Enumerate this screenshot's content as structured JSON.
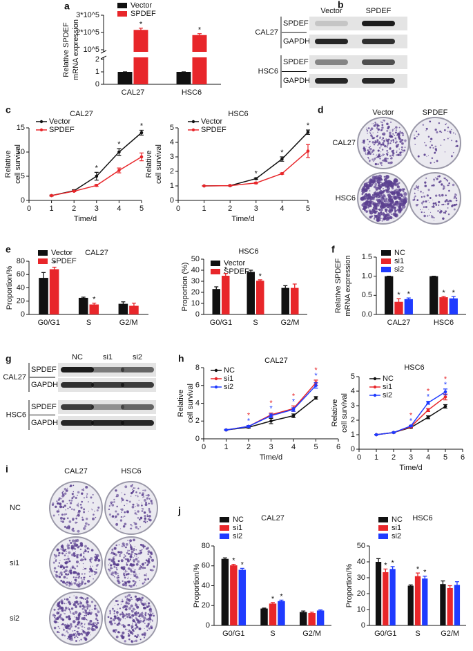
{
  "panel_labels": [
    "a",
    "b",
    "c",
    "d",
    "e",
    "f",
    "g",
    "h",
    "i",
    "j"
  ],
  "chart_data": [
    {
      "type": "bar",
      "categories": [
        "CAL27",
        "HSC6"
      ],
      "ylabel": [
        "Relative SPDEF",
        "mRNA expression"
      ],
      "ylim": [
        0,
        300000
      ],
      "axis_break": [
        2,
        100000
      ],
      "yticks": [
        0,
        1,
        2,
        {
          "value": 100000,
          "label": "10^5"
        },
        {
          "value": 200000,
          "label": "2*10^5"
        },
        {
          "value": 300000,
          "label": "3*10^5"
        }
      ],
      "series": [
        {
          "name": "Vector",
          "color": "#111111",
          "values": [
            1,
            1
          ],
          "errors": [
            0,
            0
          ],
          "stars": [
            null,
            null
          ]
        },
        {
          "name": "SPDEF",
          "color": "#e8262a",
          "values": [
            215000,
            185000
          ],
          "errors": [
            10000,
            8000
          ],
          "stars": [
            "*",
            "*"
          ]
        }
      ]
    },
    {
      "type": "line",
      "title": "CAL27",
      "xlabel": "Time/d",
      "ylabel": [
        "Relative",
        "cell survival"
      ],
      "x": [
        1,
        2,
        3,
        4,
        5
      ],
      "xlim": [
        0,
        5
      ],
      "xticks": [
        0,
        1,
        2,
        3,
        4,
        5
      ],
      "ylim": [
        0,
        15
      ],
      "yticks": [
        0,
        5,
        10,
        15
      ],
      "series": [
        {
          "name": "Vector",
          "color": "#111111",
          "values": [
            1,
            2,
            5,
            10,
            14
          ],
          "errors": [
            0.1,
            0.2,
            0.8,
            0.7,
            0.5
          ],
          "stars": [
            null,
            null,
            "*",
            "*",
            "*"
          ]
        },
        {
          "name": "SPDEF",
          "color": "#e8262a",
          "values": [
            1,
            1.9,
            3.1,
            6.2,
            9
          ],
          "errors": [
            0.1,
            0.1,
            0.2,
            0.5,
            0.8
          ],
          "stars": [
            null,
            null,
            null,
            null,
            null
          ]
        }
      ]
    },
    {
      "type": "line",
      "title": "HSC6",
      "xlabel": "Time/d",
      "ylabel": [
        "Relative",
        "cell survival"
      ],
      "x": [
        1,
        2,
        3,
        4,
        5
      ],
      "xlim": [
        0,
        5
      ],
      "xticks": [
        0,
        1,
        2,
        3,
        4,
        5
      ],
      "ylim": [
        0,
        5
      ],
      "yticks": [
        0,
        1,
        2,
        3,
        4,
        5
      ],
      "series": [
        {
          "name": "Vector",
          "color": "#111111",
          "values": [
            1,
            1.02,
            1.5,
            2.85,
            4.7
          ],
          "errors": [
            0.02,
            0.03,
            0.05,
            0.15,
            0.15
          ],
          "stars": [
            null,
            null,
            "*",
            "*",
            "*"
          ]
        },
        {
          "name": "SPDEF",
          "color": "#e8262a",
          "values": [
            1,
            1.02,
            1.2,
            1.85,
            3.4
          ],
          "errors": [
            0.02,
            0.03,
            0.05,
            0.05,
            0.45
          ],
          "stars": [
            null,
            null,
            null,
            null,
            null
          ]
        }
      ]
    },
    {
      "type": "bar",
      "title": "CAL27",
      "categories": [
        "G0/G1",
        "S",
        "G2/M"
      ],
      "ylabel": [
        "Proportion/%"
      ],
      "ylim": [
        0,
        80
      ],
      "yticks": [
        0,
        20,
        40,
        60,
        80
      ],
      "series": [
        {
          "name": "Vector",
          "color": "#111111",
          "values": [
            55,
            25,
            16
          ],
          "errors": [
            8,
            1,
            3
          ],
          "stars": [
            null,
            null,
            null
          ]
        },
        {
          "name": "SPDEF",
          "color": "#e8262a",
          "values": [
            68,
            15,
            13
          ],
          "errors": [
            3,
            2,
            4
          ],
          "stars": [
            "*",
            "*",
            null
          ]
        }
      ]
    },
    {
      "type": "bar",
      "title": "HSC6",
      "categories": [
        "G0/G1",
        "S",
        "G2/M"
      ],
      "ylabel": [
        "Proportion (%)"
      ],
      "ylim": [
        0,
        50
      ],
      "yticks": [
        0,
        10,
        20,
        30,
        40,
        50
      ],
      "series": [
        {
          "name": "Vector",
          "color": "#111111",
          "values": [
            23,
            38.5,
            24
          ],
          "errors": [
            2,
            1.5,
            2
          ],
          "stars": [
            null,
            null,
            null
          ]
        },
        {
          "name": "SPDEF",
          "color": "#e8262a",
          "values": [
            35,
            30.5,
            24
          ],
          "errors": [
            2,
            0.8,
            3.5
          ],
          "stars": [
            "*",
            "*",
            null
          ]
        }
      ]
    },
    {
      "type": "bar",
      "categories": [
        "CAL27",
        "HSC6"
      ],
      "ylabel": [
        "Relative SPDEF",
        "mRNA expression"
      ],
      "ylim": [
        0,
        1.5
      ],
      "yticks": [
        {
          "value": 0,
          "label": "0.0"
        },
        0.5,
        {
          "value": 1,
          "label": "1.0"
        },
        1.5
      ],
      "series": [
        {
          "name": "NC",
          "color": "#111111",
          "values": [
            1,
            1
          ],
          "errors": [
            0,
            0
          ],
          "stars": [
            null,
            null
          ]
        },
        {
          "name": "si1",
          "color": "#e8262a",
          "values": [
            0.33,
            0.45
          ],
          "errors": [
            0.08,
            0.02
          ],
          "stars": [
            "*",
            "*"
          ]
        },
        {
          "name": "si2",
          "color": "#1f3bff",
          "values": [
            0.4,
            0.42
          ],
          "errors": [
            0.03,
            0.05
          ],
          "stars": [
            "*",
            "*"
          ]
        }
      ]
    },
    {
      "type": "line",
      "title": "CAL27",
      "xlabel": "Time/d",
      "ylabel": [
        "Relative",
        "cell survival"
      ],
      "x": [
        1,
        2,
        3,
        4,
        5
      ],
      "xlim": [
        0,
        6
      ],
      "xticks": [
        0,
        1,
        2,
        3,
        4,
        5,
        6
      ],
      "ylim": [
        0,
        8
      ],
      "yticks": [
        0,
        2,
        4,
        6,
        8
      ],
      "series": [
        {
          "name": "NC",
          "color": "#111111",
          "values": [
            1,
            1.3,
            2,
            2.6,
            4.6
          ],
          "errors": [
            0.05,
            0.1,
            0.3,
            0.2,
            0.15
          ],
          "stars": [
            null,
            null,
            null,
            null,
            null
          ]
        },
        {
          "name": "si1",
          "color": "#e8262a",
          "values": [
            1,
            1.4,
            2.7,
            3.4,
            6.3
          ],
          "errors": [
            0.05,
            0.1,
            0.2,
            0.3,
            0.3
          ],
          "stars": [
            null,
            "*",
            "*",
            "*",
            "*"
          ]
        },
        {
          "name": "si2",
          "color": "#1f3bff",
          "values": [
            1,
            1.4,
            2.6,
            3.3,
            6
          ],
          "errors": [
            0.05,
            0.1,
            0.2,
            0.2,
            0.3
          ],
          "stars": [
            null,
            "*",
            "*",
            "*",
            "*"
          ]
        }
      ]
    },
    {
      "type": "line",
      "title": "HSC6",
      "xlabel": "Time/d",
      "ylabel": [
        "Relative",
        "cell survival"
      ],
      "x": [
        1,
        2,
        3,
        4,
        5
      ],
      "xlim": [
        0,
        6
      ],
      "xticks": [
        0,
        1,
        2,
        3,
        4,
        5,
        6
      ],
      "ylim": [
        0,
        5
      ],
      "yticks": [
        0,
        1,
        2,
        3,
        4,
        5
      ],
      "series": [
        {
          "name": "NC",
          "color": "#111111",
          "values": [
            1,
            1.15,
            1.5,
            2.2,
            2.95
          ],
          "errors": [
            0.02,
            0.03,
            0.05,
            0.1,
            0.12
          ],
          "stars": [
            null,
            null,
            null,
            null,
            null
          ]
        },
        {
          "name": "si1",
          "color": "#e8262a",
          "values": [
            1,
            1.15,
            1.55,
            2.7,
            3.6
          ],
          "errors": [
            0.02,
            0.03,
            0.05,
            0.1,
            0.2
          ],
          "stars": [
            null,
            null,
            "*",
            "*",
            "*"
          ]
        },
        {
          "name": "si2",
          "color": "#1f3bff",
          "values": [
            1,
            1.15,
            1.6,
            3.2,
            3.95
          ],
          "errors": [
            0.02,
            0.03,
            0.05,
            0.1,
            0.2
          ],
          "stars": [
            null,
            null,
            "*",
            "*",
            "*"
          ]
        }
      ]
    },
    {
      "type": "bar",
      "title": "CAL27",
      "categories": [
        "G0/G1",
        "S",
        "G2/M"
      ],
      "ylabel": [
        "Proportion/%"
      ],
      "ylim": [
        0,
        80
      ],
      "yticks": [
        0,
        20,
        40,
        60,
        80
      ],
      "series": [
        {
          "name": "NC",
          "color": "#111111",
          "values": [
            67,
            17,
            13.5
          ],
          "errors": [
            1,
            0.5,
            1
          ],
          "stars": [
            null,
            null,
            null
          ]
        },
        {
          "name": "si1",
          "color": "#e8262a",
          "values": [
            60.5,
            22,
            12.5
          ],
          "errors": [
            1,
            1,
            0.8
          ],
          "stars": [
            "*",
            "*",
            null
          ]
        },
        {
          "name": "si2",
          "color": "#1f3bff",
          "values": [
            56,
            24.5,
            15
          ],
          "errors": [
            1.5,
            1,
            0.6
          ],
          "stars": [
            "*",
            "*",
            null
          ]
        }
      ]
    },
    {
      "type": "bar",
      "title": "HSC6",
      "categories": [
        "G0/G1",
        "S",
        "G2/M"
      ],
      "ylabel": [
        "Proportion/%"
      ],
      "ylim": [
        0,
        50
      ],
      "yticks": [
        0,
        10,
        20,
        30,
        40,
        50
      ],
      "series": [
        {
          "name": "NC",
          "color": "#111111",
          "values": [
            40,
            25,
            26
          ],
          "errors": [
            2,
            0.5,
            2
          ],
          "stars": [
            null,
            null,
            null
          ]
        },
        {
          "name": "si1",
          "color": "#e8262a",
          "values": [
            33.5,
            31,
            23.5
          ],
          "errors": [
            2,
            2,
            1.5
          ],
          "stars": [
            "*",
            "*",
            null
          ]
        },
        {
          "name": "si2",
          "color": "#1f3bff",
          "values": [
            35.5,
            29.5,
            25.5
          ],
          "errors": [
            1.5,
            1.5,
            2
          ],
          "stars": [
            "*",
            "*",
            null
          ]
        }
      ]
    }
  ],
  "blots": [
    {
      "columns": [
        "Vector",
        "SPDEF"
      ],
      "groups": [
        {
          "name": "CAL27",
          "bands": [
            "SPDEF",
            "GAPDH"
          ]
        },
        {
          "name": "HSC6",
          "bands": [
            "SPDEF",
            "GAPDH"
          ]
        }
      ]
    },
    {
      "columns": [
        "NC",
        "si1",
        "si2"
      ],
      "groups": [
        {
          "name": "CAL27",
          "bands": [
            "SPDEF",
            "GAPDH"
          ]
        },
        {
          "name": "HSC6",
          "bands": [
            "SPDEF",
            "GAPDH"
          ]
        }
      ]
    }
  ],
  "colony_assays": [
    {
      "columns": [
        "Vector",
        "SPDEF"
      ],
      "rows": [
        "CAL27",
        "HSC6"
      ]
    },
    {
      "columns": [
        "CAL27",
        "HSC6"
      ],
      "rows": [
        "NC",
        "si1",
        "si2"
      ]
    }
  ]
}
